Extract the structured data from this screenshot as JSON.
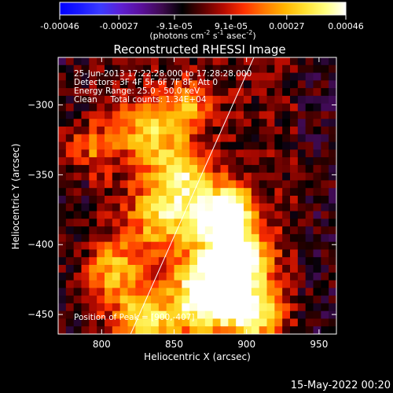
{
  "colorbar": {
    "tick_labels": [
      "-0.00046",
      "-0.00027",
      "-9.1e-05",
      "9.1e-05",
      "0.00027",
      "0.00046"
    ],
    "tick_values": [
      -0.00046,
      -0.00027,
      -9.1e-05,
      9.1e-05,
      0.00027,
      0.00046
    ],
    "range": [
      -0.00046,
      0.00046
    ],
    "unit_label": "(photons cm",
    "unit_exp1": "-2",
    "unit_mid": " s",
    "unit_exp2": "-1",
    "unit_tail": " asec",
    "unit_exp3": "-2",
    "unit_close": ")",
    "colormap_stops": [
      "#0000ff",
      "#1a1aff",
      "#3b3bff",
      "#5e1fd2",
      "#5a0f9a",
      "#3e0a4f",
      "#000000",
      "#5a0000",
      "#b40a00",
      "#ff3000",
      "#ff7800",
      "#ffb400",
      "#ffe030",
      "#ffff80",
      "#ffffff"
    ]
  },
  "chart_data": {
    "type": "heatmap",
    "title": "Reconstructed RHESSI Image",
    "xlabel": "Heliocentric X (arcsec)",
    "ylabel": "Heliocentric Y (arcsec)",
    "xlim": [
      770,
      962
    ],
    "ylim": [
      -464,
      -266
    ],
    "xticks": [
      800,
      850,
      900,
      950
    ],
    "yticks": [
      -300,
      -350,
      -400,
      -450
    ],
    "peak": [
      900,
      -407
    ],
    "annotations": {
      "time": "25-Jun-2013 17:22:28.000 to 17:28:28.000",
      "detectors": "Detectors: 3F 4F 5F 6F 7F 8F, Att 0",
      "energy": "Energy Range: 25.0 - 50.0 keV",
      "method": "Clean     Total counts: 1.34E+04",
      "peak_label": "Position of Peak = [900,-407]"
    },
    "limb_line": {
      "x": [
        820,
        905
      ],
      "y": [
        -464,
        -266
      ]
    },
    "grid": false
  },
  "footer": {
    "timestamp": "15-May-2022 00:20"
  }
}
